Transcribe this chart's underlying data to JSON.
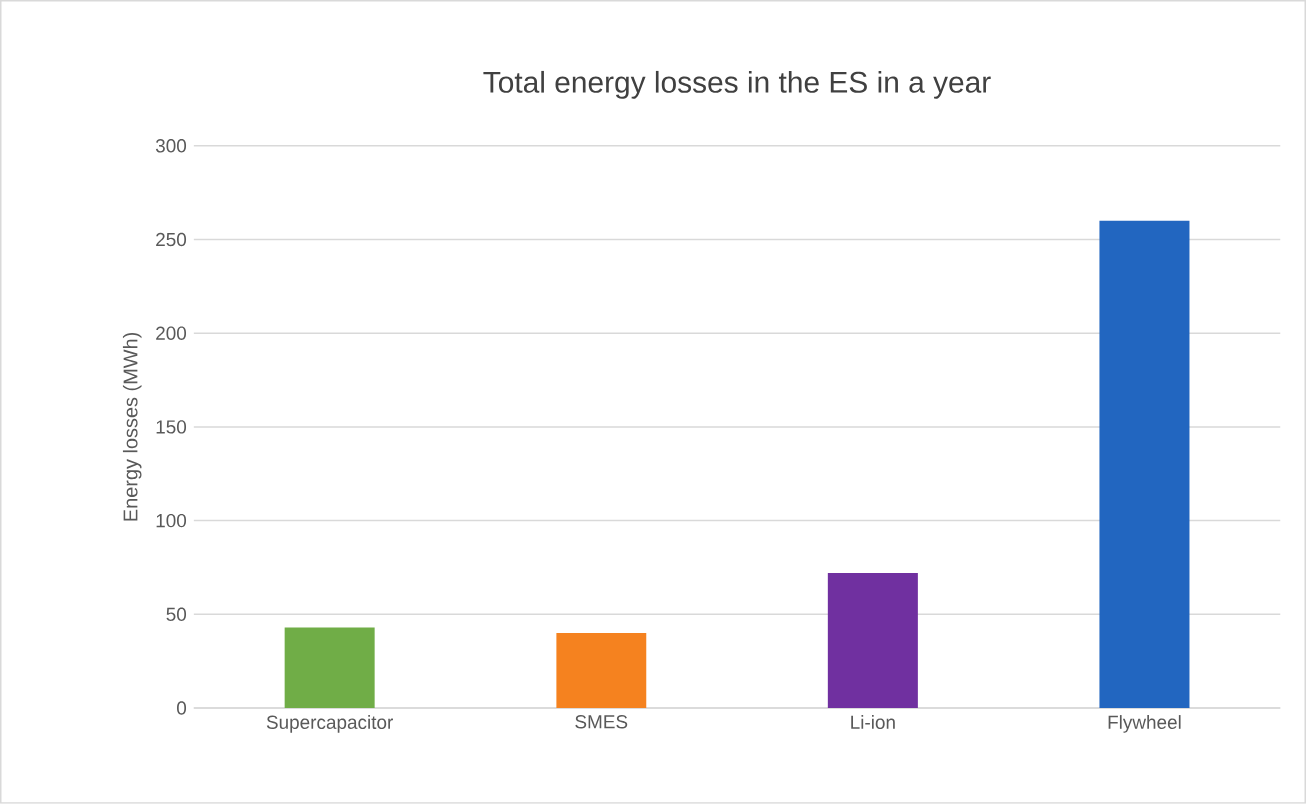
{
  "chart_data": {
    "type": "bar",
    "title": "Total energy losses in the ES  in a year",
    "ylabel": "Energy losses (MWh)",
    "categories": [
      "Supercapacitor",
      "SMES",
      "Li-ion",
      "Flywheel"
    ],
    "values": [
      43,
      40,
      72,
      260
    ],
    "colors": [
      "#70ad47",
      "#f5821f",
      "#7030a0",
      "#2266c0"
    ],
    "ylim": [
      0,
      300
    ],
    "yticks": [
      0,
      50,
      100,
      150,
      200,
      250,
      300
    ],
    "grid": "y"
  }
}
